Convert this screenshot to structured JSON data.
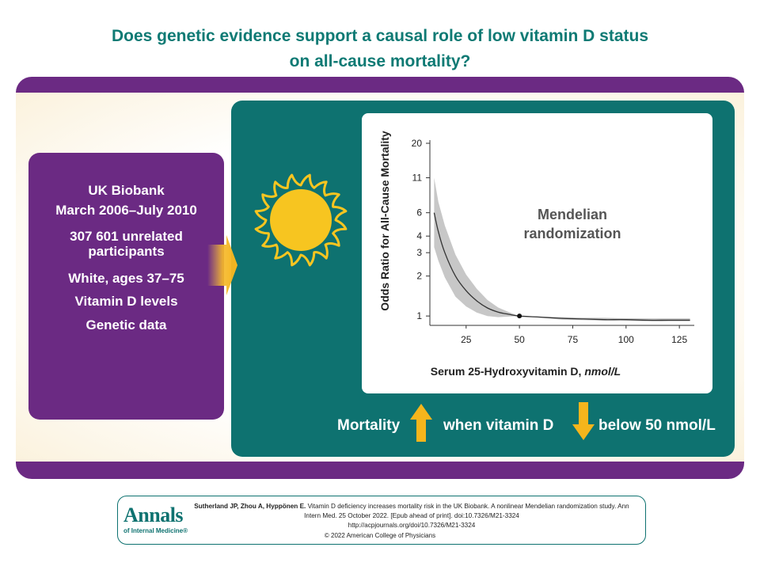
{
  "title": {
    "line1": "Does genetic evidence support a causal role of low vitamin D status",
    "line2": "on all-cause mortality?"
  },
  "study": {
    "name": "UK Biobank",
    "dates": "March 2006–July 2010",
    "participants_line1": "307 601 unrelated",
    "participants_line2": "participants",
    "demographics": "White, ages 37–75",
    "item_vitd": "Vitamin D levels",
    "item_genetic": "Genetic data"
  },
  "chart_data": {
    "type": "line",
    "title": "",
    "annotation_line1": "Mendelian",
    "annotation_line2": "randomization",
    "xlabel_main": "Serum 25-Hydroxyvitamin D, ",
    "xlabel_unit": "nmol/L",
    "ylabel": "Odds Ratio for All-Cause Mortality",
    "y_scale": "log",
    "ylim": [
      0.85,
      20
    ],
    "xlim": [
      8,
      132
    ],
    "yticks": [
      1,
      2,
      3,
      4,
      6,
      11,
      20
    ],
    "xticks": [
      25,
      50,
      75,
      100,
      125
    ],
    "reference_point": {
      "x": 50,
      "y": 1
    },
    "series": [
      {
        "name": "Odds ratio",
        "x": [
          10,
          12,
          15,
          20,
          25,
          30,
          35,
          40,
          45,
          50,
          60,
          70,
          80,
          90,
          100,
          110,
          120,
          130
        ],
        "y": [
          6.0,
          4.3,
          3.0,
          2.0,
          1.55,
          1.3,
          1.15,
          1.07,
          1.03,
          1.0,
          0.98,
          0.96,
          0.95,
          0.94,
          0.94,
          0.93,
          0.93,
          0.93
        ]
      },
      {
        "name": "95% CI upper",
        "x": [
          10,
          12,
          15,
          20,
          25,
          30,
          35,
          40,
          45,
          50,
          60,
          70,
          80,
          90,
          100,
          110,
          120,
          130
        ],
        "y": [
          11.0,
          7.2,
          4.8,
          2.9,
          2.05,
          1.6,
          1.32,
          1.16,
          1.07,
          1.0,
          0.99,
          0.98,
          0.97,
          0.97,
          0.96,
          0.96,
          0.96,
          0.96
        ]
      },
      {
        "name": "95% CI lower",
        "x": [
          10,
          12,
          15,
          20,
          25,
          30,
          35,
          40,
          45,
          50,
          60,
          70,
          80,
          90,
          100,
          110,
          120,
          130
        ],
        "y": [
          3.3,
          2.6,
          1.95,
          1.4,
          1.18,
          1.06,
          1.0,
          0.98,
          0.99,
          1.0,
          0.97,
          0.94,
          0.93,
          0.92,
          0.92,
          0.91,
          0.91,
          0.91
        ]
      }
    ]
  },
  "conclusion": {
    "mortality": "Mortality",
    "when": "when vitamin D",
    "below": "below 50 nmol/L"
  },
  "citation": {
    "logo_main": "Annals",
    "logo_sub": "of Internal Medicine®",
    "authors": "Sutherland JP, Zhou A, Hyppönen E.",
    "text1": "Vitamin D deficiency increases mortality risk in the UK Biobank. A nonlinear Mendelian randomization study. Ann",
    "text2": "Intern Med. 25 October 2022. [Epub ahead of print]. doi:10.7326/M21-3324",
    "text3": "http://acpjournals.org/doi/10.7326/M21-3324",
    "copyright": "© 2022 American College of Physicians"
  },
  "colors": {
    "teal": "#0e7270",
    "purple": "#6b2a83",
    "sun": "#f7c520",
    "arrow": "#f5b51c"
  }
}
